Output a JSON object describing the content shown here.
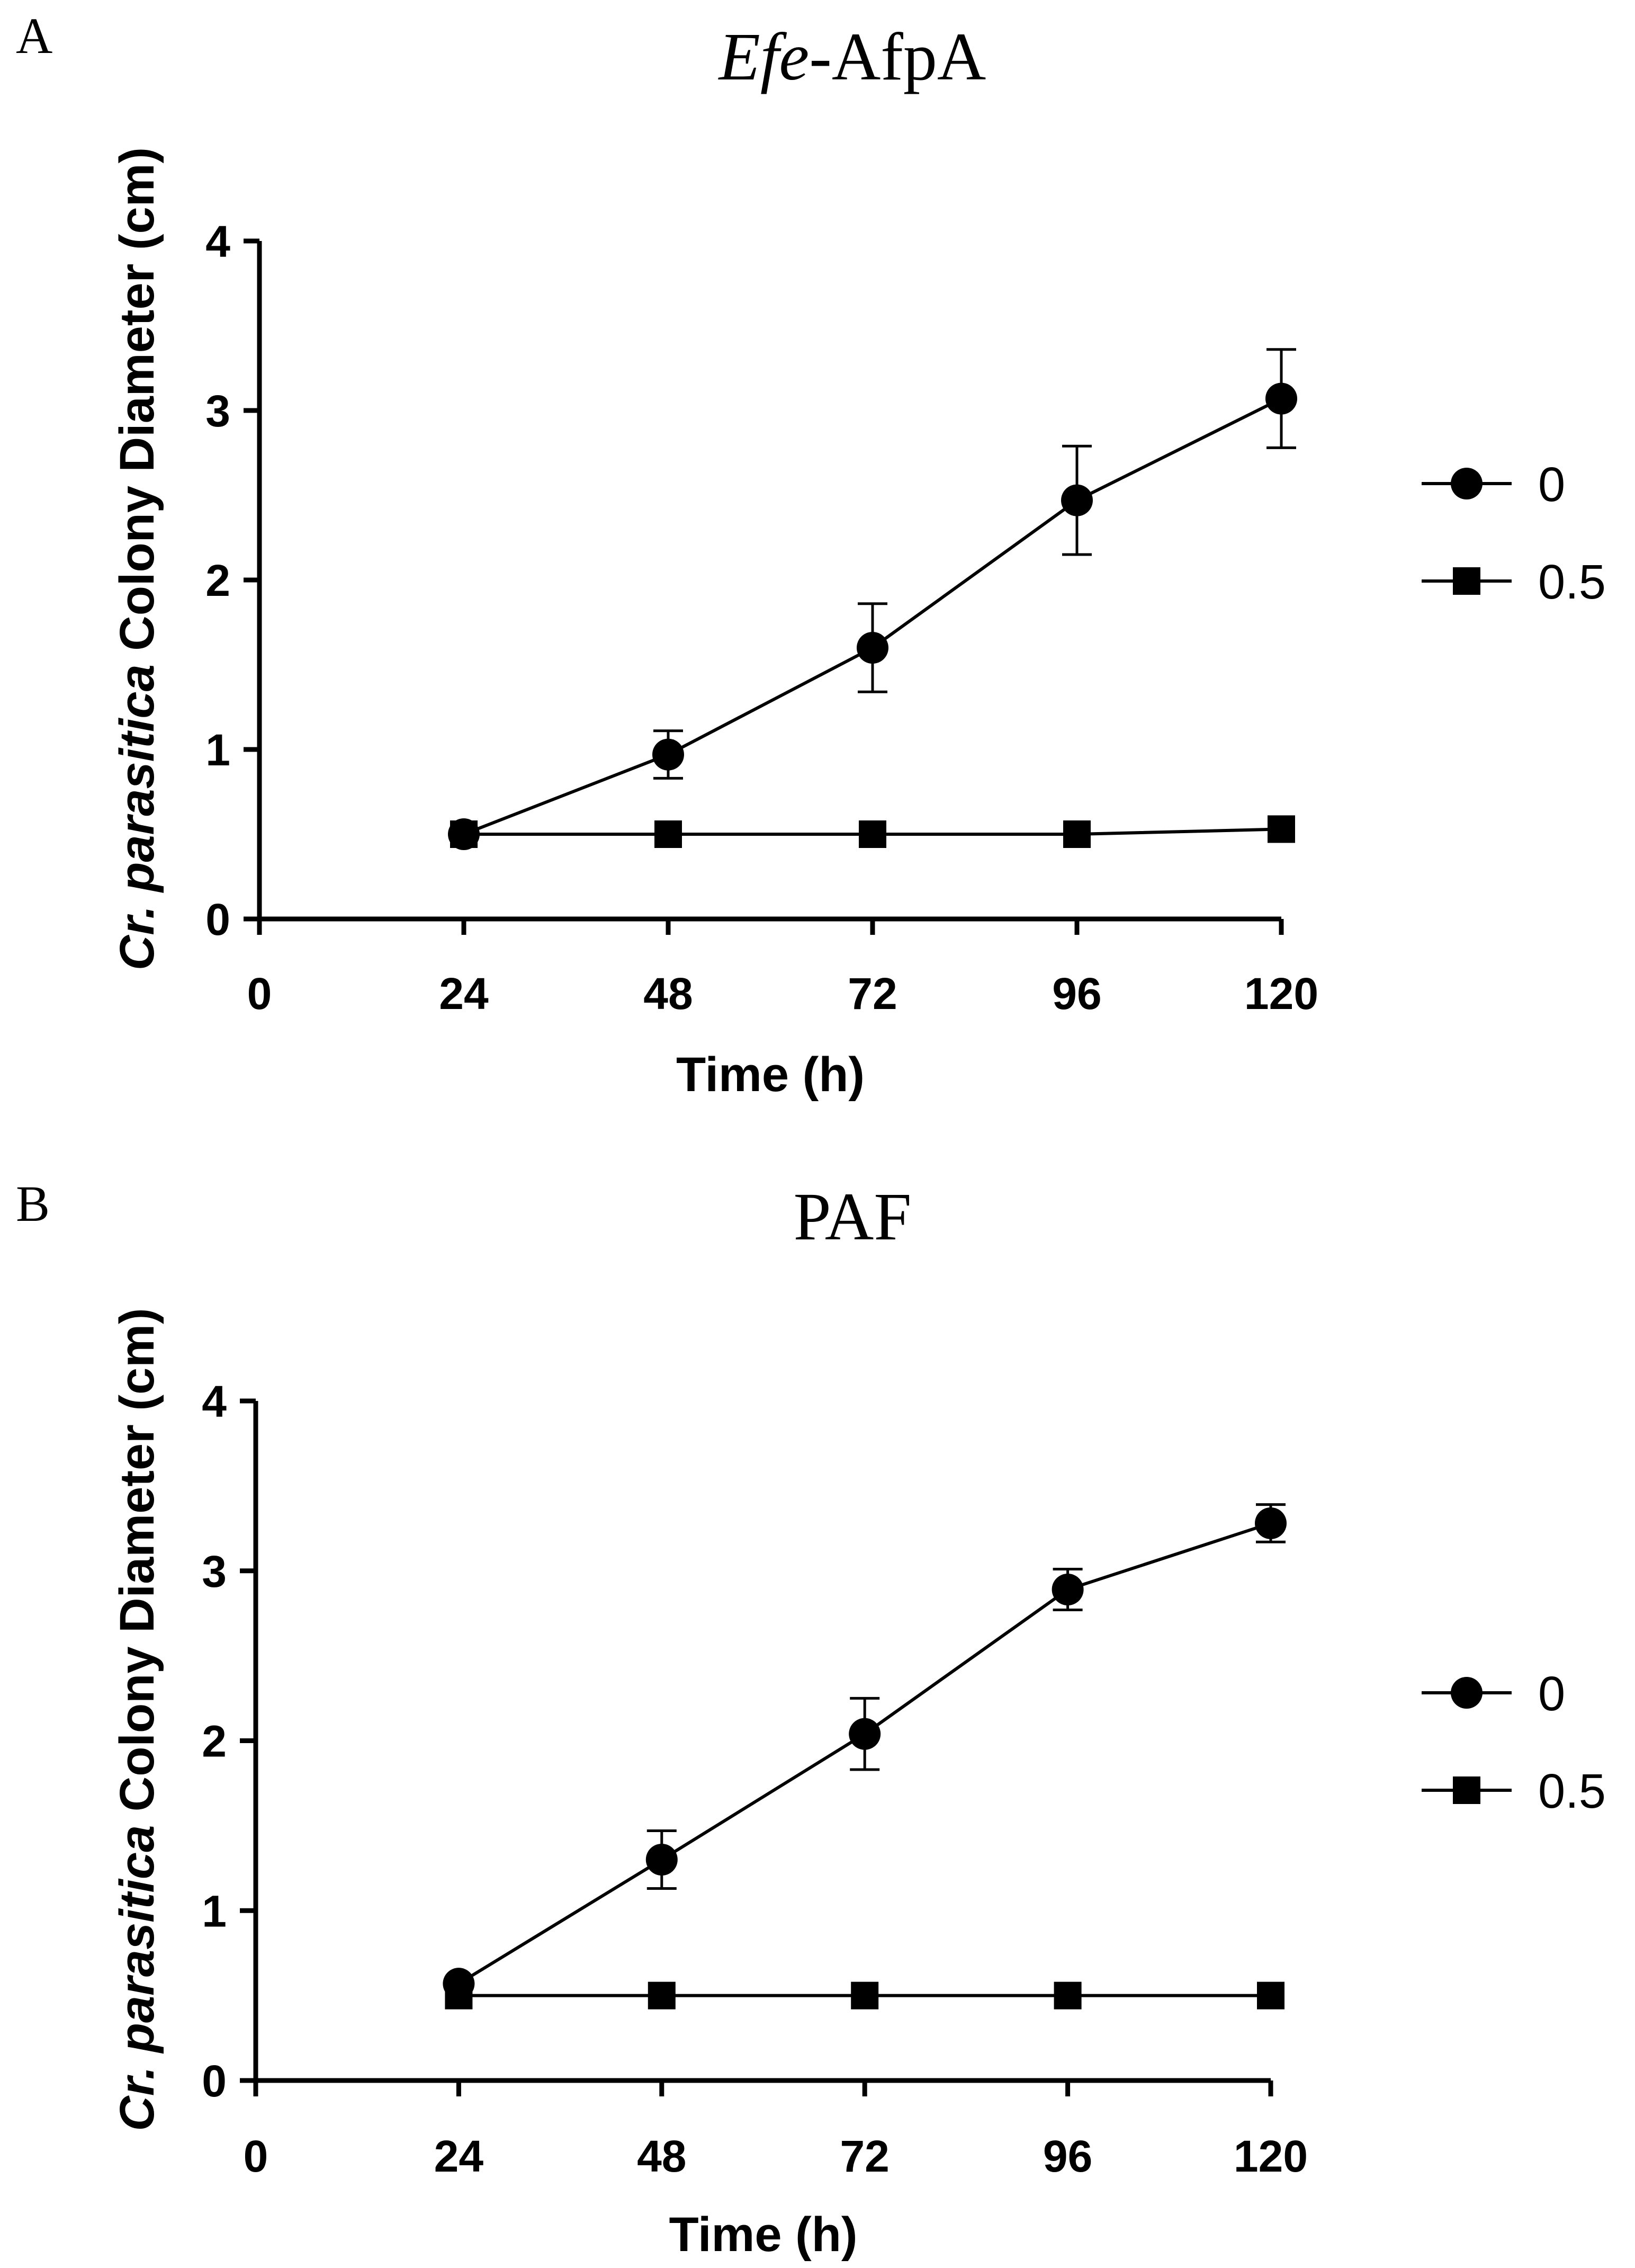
{
  "chart_data": [
    {
      "type": "line",
      "panel_label": "A",
      "title_parts": [
        {
          "text": "Efe",
          "italic": true
        },
        {
          "text": "-AfpA",
          "italic": false
        }
      ],
      "xlabel": "Time (h)",
      "ylabel_parts": [
        {
          "text": "Cr. parasitica",
          "italic": true
        },
        {
          "text": " Colony Diameter (cm)",
          "italic": false
        }
      ],
      "xlim": [
        0,
        120
      ],
      "ylim": [
        0,
        4
      ],
      "xticks": [
        0,
        24,
        48,
        72,
        96,
        120
      ],
      "yticks": [
        0,
        1,
        2,
        3,
        4
      ],
      "series": [
        {
          "name": "0",
          "marker": "circle",
          "x": [
            24,
            48,
            72,
            96,
            120
          ],
          "y": [
            0.5,
            0.97,
            1.6,
            2.47,
            3.07
          ],
          "err": [
            0,
            0.14,
            0.26,
            0.32,
            0.29
          ]
        },
        {
          "name": "0.5",
          "marker": "square",
          "x": [
            24,
            48,
            72,
            96,
            120
          ],
          "y": [
            0.5,
            0.5,
            0.5,
            0.5,
            0.53
          ],
          "err": [
            0,
            0,
            0,
            0,
            0
          ]
        }
      ]
    },
    {
      "type": "line",
      "panel_label": "B",
      "title_parts": [
        {
          "text": "PAF",
          "italic": false
        }
      ],
      "xlabel": "Time (h)",
      "ylabel_parts": [
        {
          "text": "Cr. parasitica",
          "italic": true
        },
        {
          "text": " Colony Diameter (cm)",
          "italic": false
        }
      ],
      "xlim": [
        0,
        120
      ],
      "ylim": [
        0,
        4
      ],
      "xticks": [
        0,
        24,
        48,
        72,
        96,
        120
      ],
      "yticks": [
        0,
        1,
        2,
        3,
        4
      ],
      "series": [
        {
          "name": "0",
          "marker": "circle",
          "x": [
            24,
            48,
            72,
            96,
            120
          ],
          "y": [
            0.57,
            1.3,
            2.04,
            2.89,
            3.28
          ],
          "err": [
            0,
            0.17,
            0.21,
            0.12,
            0.11
          ]
        },
        {
          "name": "0.5",
          "marker": "square",
          "x": [
            24,
            48,
            72,
            96,
            120
          ],
          "y": [
            0.5,
            0.5,
            0.5,
            0.5,
            0.5
          ],
          "err": [
            0,
            0,
            0,
            0,
            0
          ]
        }
      ]
    }
  ]
}
